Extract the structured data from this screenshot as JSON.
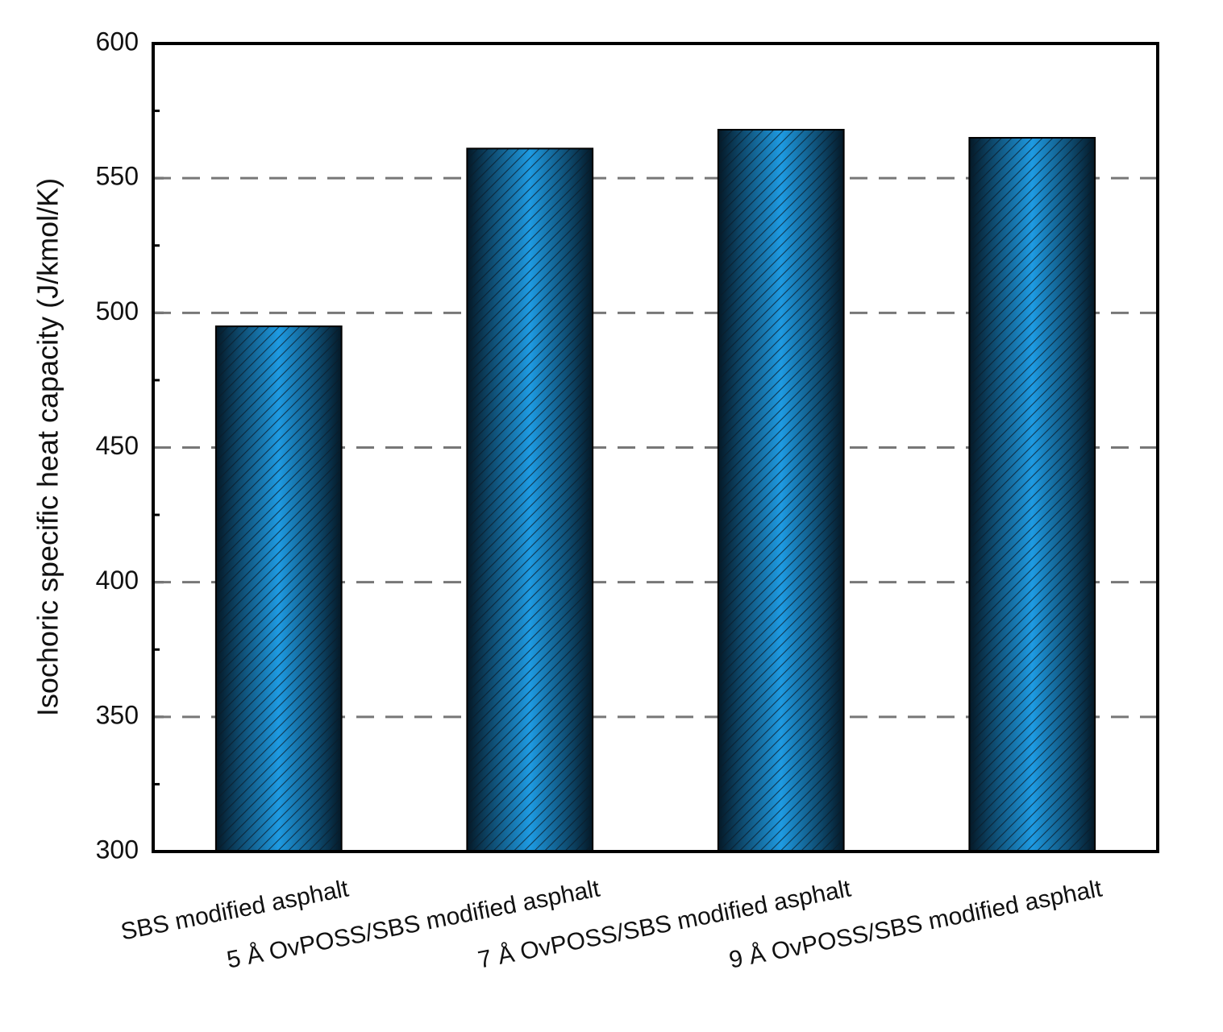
{
  "chart_data": {
    "type": "bar",
    "y_label": "Isochoric specific heat capacity (J/kmol/K)",
    "categories": [
      "SBS modified asphalt",
      "5 Å OvPOSS/SBS modified asphalt",
      "7 Å OvPOSS/SBS modified asphalt",
      "9 Å OvPOSS/SBS modified asphalt"
    ],
    "values": [
      495,
      561,
      568,
      565
    ],
    "color": "#1e9be3",
    "ylim": [
      300,
      600
    ],
    "yticks": [
      300,
      350,
      400,
      450,
      500,
      550,
      600
    ],
    "grid": true
  }
}
